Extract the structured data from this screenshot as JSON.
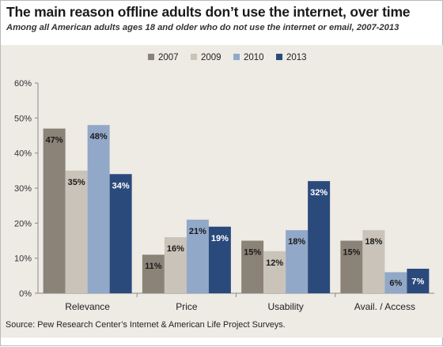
{
  "chart_data": {
    "type": "bar",
    "title": "The main reason offline adults don’t use the internet, over time",
    "subtitle": "Among all American adults ages 18 and older who do not use the internet or email, 2007-2013",
    "categories": [
      "Relevance",
      "Price",
      "Usability",
      "Avail. / Access"
    ],
    "series": [
      {
        "name": "2007",
        "values": [
          47,
          11,
          15,
          15
        ],
        "labels": [
          "47%",
          "11%",
          "15%",
          "15%"
        ],
        "color": "#8c8378"
      },
      {
        "name": "2009",
        "values": [
          35,
          16,
          12,
          18
        ],
        "labels": [
          "35%",
          "16%",
          "12%",
          "18%"
        ],
        "color": "#c9c3b9"
      },
      {
        "name": "2010",
        "values": [
          48,
          21,
          18,
          6
        ],
        "labels": [
          "48%",
          "21%",
          "18%",
          "6%"
        ],
        "color": "#91a8c8"
      },
      {
        "name": "2013",
        "values": [
          34,
          19,
          32,
          7
        ],
        "labels": [
          "34%",
          "19%",
          "32%",
          "7%"
        ],
        "color": "#2b4a7c"
      }
    ],
    "yticks": [
      "0%",
      "10%",
      "20%",
      "30%",
      "40%",
      "50%",
      "60%"
    ],
    "ylim": [
      0,
      60
    ],
    "grid": false,
    "legend": "top-center"
  },
  "source": "Source: Pew Research Center’s Internet & American Life Project Surveys."
}
